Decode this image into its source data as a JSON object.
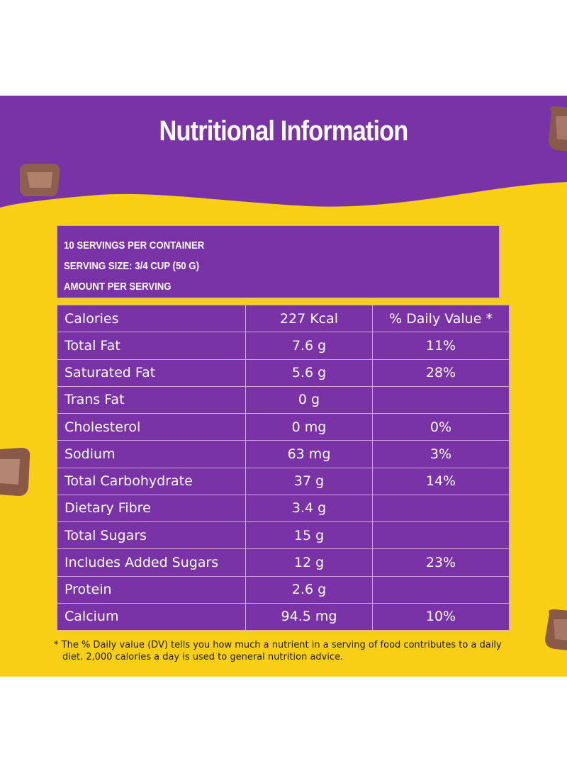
{
  "title": "Nutritional Information",
  "info": {
    "servings": "10 SERVINGS PER CONTAINER",
    "serving_size": "SERVING SIZE: 3/4 CUP (50 G)",
    "amount": "AMOUNT PER SERVING"
  },
  "header": {
    "label": "Calories",
    "value": "227 Kcal",
    "dv": "% Daily Value *"
  },
  "rows": [
    {
      "name": "Total Fat",
      "amount": "7.6 g",
      "dv": "11%"
    },
    {
      "name": "Saturated Fat",
      "amount": "5.6 g",
      "dv": "28%"
    },
    {
      "name": "Trans Fat",
      "amount": "0 g",
      "dv": ""
    },
    {
      "name": "Cholesterol",
      "amount": "0 mg",
      "dv": "0%"
    },
    {
      "name": "Sodium",
      "amount": "63 mg",
      "dv": "3%"
    },
    {
      "name": "Total Carbohydrate",
      "amount": "37 g",
      "dv": "14%"
    },
    {
      "name": "Dietary Fibre",
      "amount": "3.4 g",
      "dv": ""
    },
    {
      "name": "Total Sugars",
      "amount": "15 g",
      "dv": ""
    },
    {
      "name": "Includes Added Sugars",
      "amount": "12 g",
      "dv": "23%"
    },
    {
      "name": "Protein",
      "amount": "2.6 g",
      "dv": ""
    },
    {
      "name": "Calcium",
      "amount": "94.5 mg",
      "dv": "10%"
    }
  ],
  "footnote": "* The % Daily value (DV) tells you how much a nutrient in a serving of food contributes to a daily diet. 2,000 calories a day is used to general nutrition advice.",
  "colors": {
    "purple": "#7a33a6",
    "yellow": "#f8cf14",
    "table_border": "#cfa8e6",
    "chocolate": "#8a5a4a"
  }
}
